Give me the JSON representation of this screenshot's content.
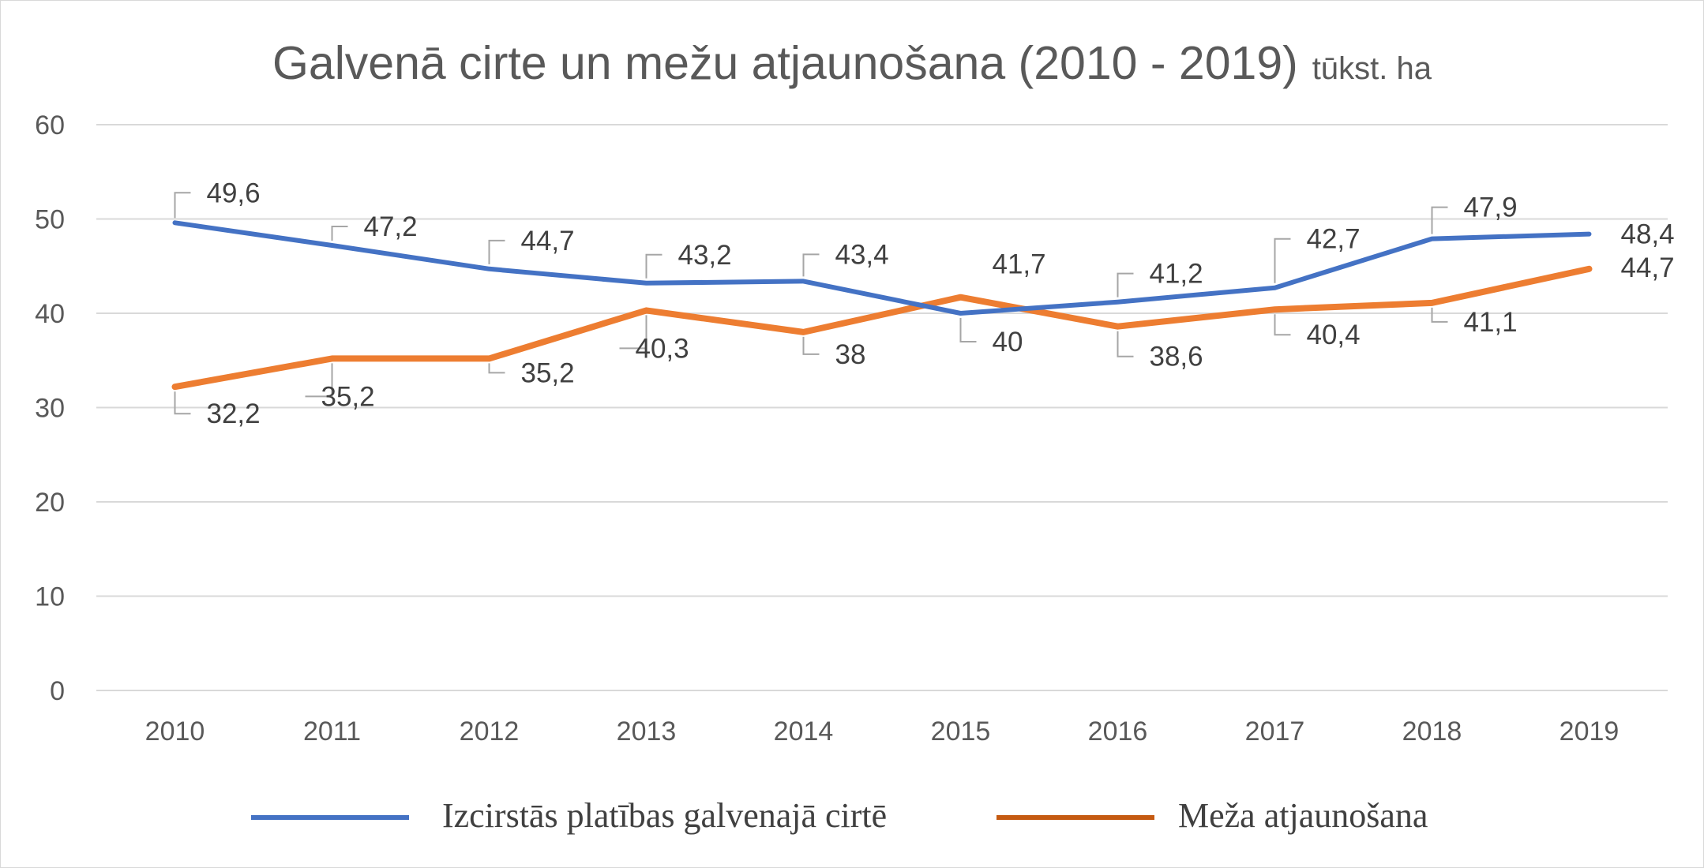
{
  "chart_data": {
    "type": "line",
    "title": "Galvenā cirte un mežu atjaunošana (2010 - 2019)",
    "title_unit": "tūkst. ha",
    "categories": [
      "2010",
      "2011",
      "2012",
      "2013",
      "2014",
      "2015",
      "2016",
      "2017",
      "2018",
      "2019"
    ],
    "ylim": [
      0,
      60
    ],
    "yticks": [
      "0",
      "10",
      "20",
      "30",
      "40",
      "50",
      "60"
    ],
    "grid": true,
    "legend_position": "bottom",
    "series": [
      {
        "name": "Izcirstās platības galvenajā cirtē",
        "color": "#4472c4",
        "values": [
          49.6,
          47.2,
          44.7,
          43.2,
          43.4,
          40,
          41.2,
          42.7,
          47.9,
          48.4
        ],
        "labels": [
          "49,6",
          "47,2",
          "44,7",
          "43,2",
          "43,4",
          "40",
          "41,2",
          "42,7",
          "47,9",
          "48,4"
        ]
      },
      {
        "name": "Meža atjaunošana",
        "color": "#ed7d31",
        "legend_color": "#c55a11",
        "values": [
          32.2,
          35.2,
          35.2,
          40.3,
          38,
          41.7,
          38.6,
          40.4,
          41.1,
          44.7
        ],
        "labels": [
          "32,2",
          "35,2",
          "35,2",
          "40,3",
          "38",
          "41,7",
          "38,6",
          "40,4",
          "41,1",
          "44,7"
        ]
      }
    ]
  }
}
